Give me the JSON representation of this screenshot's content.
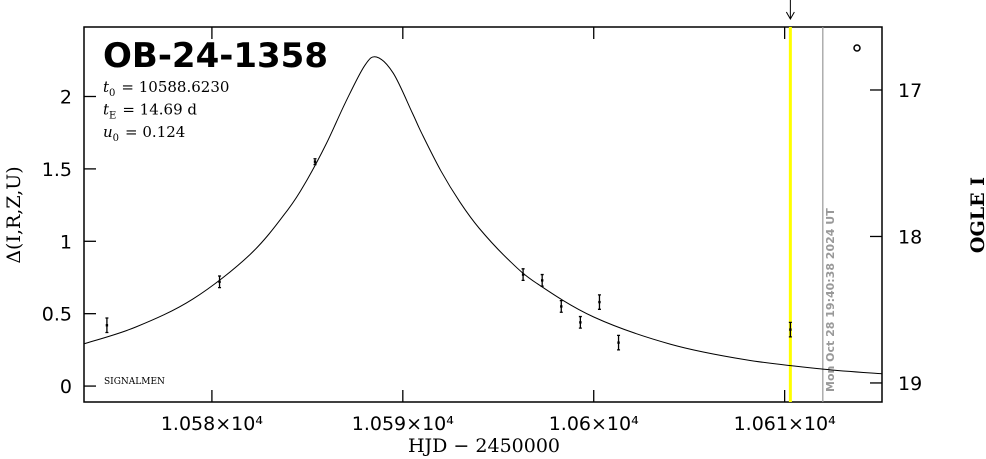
{
  "chart_data": {
    "type": "scatter",
    "title": "OB-24-1358",
    "parameters": [
      {
        "symbol": "t",
        "subscript": "0",
        "text": "= 10588.6230"
      },
      {
        "symbol": "t",
        "subscript": "E",
        "text": "= 14.69 d"
      },
      {
        "symbol": "u",
        "subscript": "0",
        "text": "= 0.124"
      }
    ],
    "source": "SIGNALMEN",
    "xlabel": "HJD − 2450000",
    "ylabel": "Δ(I,R,Z,U)",
    "y2label": "OGLE I",
    "xlim": [
      10573.3,
      10615.1
    ],
    "ylim": [
      -0.11,
      2.48
    ],
    "y2lim": [
      19.13,
      16.57
    ],
    "xticks": [
      {
        "value": 10580,
        "label": "1.058×10⁴"
      },
      {
        "value": 10590,
        "label": "1.059×10⁴"
      },
      {
        "value": 10600,
        "label": "1.06×10⁴"
      },
      {
        "value": 10610,
        "label": "1.061×10⁴"
      }
    ],
    "yticks": [
      0,
      0.5,
      1,
      1.5,
      2
    ],
    "y2ticks": [
      17,
      18,
      19
    ],
    "points": {
      "color": "#000000",
      "x": [
        10574.5,
        10580.4,
        10585.4,
        10596.3,
        10597.3,
        10598.3,
        10599.3,
        10600.3,
        10601.3,
        10610.3
      ],
      "values": [
        0.42,
        0.72,
        1.55,
        0.77,
        0.73,
        0.55,
        0.44,
        0.58,
        0.3,
        0.39
      ],
      "errors": [
        0.05,
        0.04,
        0.02,
        0.04,
        0.04,
        0.04,
        0.04,
        0.05,
        0.05,
        0.05
      ]
    },
    "model": {
      "color": "#000000",
      "x": [
        10573.3,
        10576,
        10579,
        10582,
        10584,
        10585,
        10586,
        10587,
        10588,
        10588.623,
        10589.5,
        10590.5,
        10591,
        10592,
        10593,
        10594,
        10595.5,
        10597,
        10600,
        10604,
        10608,
        10612,
        10615.1
      ],
      "values": [
        0.292,
        0.407,
        0.601,
        0.909,
        1.222,
        1.428,
        1.676,
        1.96,
        2.213,
        2.273,
        2.161,
        1.886,
        1.743,
        1.485,
        1.269,
        1.09,
        0.877,
        0.711,
        0.477,
        0.29,
        0.181,
        0.117,
        0.085
      ]
    },
    "markers": [
      {
        "x": 10610.3,
        "color": "#ffff00"
      },
      {
        "x": 10612.0,
        "color": "#999999",
        "label": "Mon Oct 28 19:40:38 2024 UT"
      }
    ]
  }
}
